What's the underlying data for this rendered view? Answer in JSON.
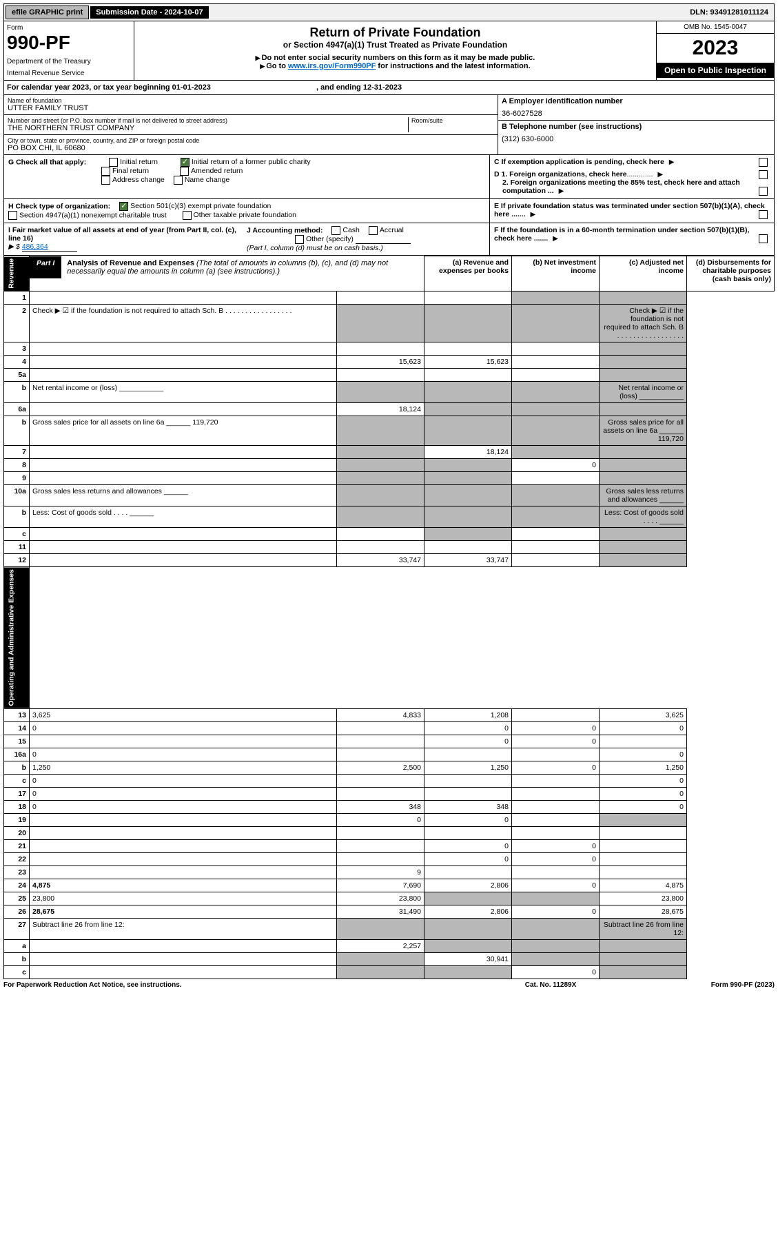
{
  "topbar": {
    "efile": "efile GRAPHIC print",
    "submission": "Submission Date - 2024-10-07",
    "dln": "DLN: 93491281011124"
  },
  "header": {
    "form_label": "Form",
    "form_num": "990-PF",
    "dept1": "Department of the Treasury",
    "dept2": "Internal Revenue Service",
    "title": "Return of Private Foundation",
    "subtitle": "or Section 4947(a)(1) Trust Treated as Private Foundation",
    "instr1": "Do not enter social security numbers on this form as it may be made public.",
    "instr2_pre": "Go to ",
    "instr2_link": "www.irs.gov/Form990PF",
    "instr2_post": " for instructions and the latest information.",
    "omb": "OMB No. 1545-0047",
    "year": "2023",
    "inspection": "Open to Public Inspection"
  },
  "cal_year": {
    "text_pre": "For calendar year 2023, or tax year beginning ",
    "begin": "01-01-2023",
    "text_mid": " , and ending ",
    "end": "12-31-2023"
  },
  "info": {
    "name_label": "Name of foundation",
    "name": "UTTER FAMILY TRUST",
    "addr_label": "Number and street (or P.O. box number if mail is not delivered to street address)",
    "addr": "THE NORTHERN TRUST COMPANY",
    "room_label": "Room/suite",
    "city_label": "City or town, state or province, country, and ZIP or foreign postal code",
    "city": "PO BOX CHI, IL  60680",
    "ein_label": "A Employer identification number",
    "ein": "36-6027528",
    "phone_label": "B Telephone number (see instructions)",
    "phone": "(312) 630-6000"
  },
  "checks": {
    "G_label": "G Check all that apply:",
    "initial": "Initial return",
    "final": "Final return",
    "address": "Address change",
    "initial_former": "Initial return of a former public charity",
    "amended": "Amended return",
    "name_change": "Name change",
    "H_label": "H Check type of organization:",
    "H_501c3": "Section 501(c)(3) exempt private foundation",
    "H_4947": "Section 4947(a)(1) nonexempt charitable trust",
    "H_other": "Other taxable private foundation",
    "I_label": "I Fair market value of all assets at end of year (from Part II, col. (c), line 16)",
    "I_value": "486,364",
    "J_label": "J Accounting method:",
    "J_cash": "Cash",
    "J_accrual": "Accrual",
    "J_other": "Other (specify)",
    "J_note": "(Part I, column (d) must be on cash basis.)",
    "C_label": "C If exemption application is pending, check here",
    "D1_label": "D 1. Foreign organizations, check here",
    "D2_label": "2. Foreign organizations meeting the 85% test, check here and attach computation ...",
    "E_label": "E If private foundation status was terminated under section 507(b)(1)(A), check here .......",
    "F_label": "F If the foundation is in a 60-month termination under section 507(b)(1)(B), check here .......",
    "dots": "............."
  },
  "part1": {
    "label": "Part I",
    "title_bold": "Analysis of Revenue and Expenses",
    "title_rest": " (The total of amounts in columns (b), (c), and (d) may not necessarily equal the amounts in column (a) (see instructions).)",
    "col_a": "(a)   Revenue and expenses per books",
    "col_b": "(b)   Net investment income",
    "col_c": "(c)   Adjusted net income",
    "col_d": "(d)   Disbursements for charitable purposes (cash basis only)",
    "side_revenue": "Revenue",
    "side_expenses": "Operating and Administrative Expenses"
  },
  "rows": [
    {
      "n": "1",
      "d": "",
      "a": "",
      "b": "",
      "c": "",
      "sh_c": true,
      "sh_d": true
    },
    {
      "n": "2",
      "d": "Check ▶ ☑ if the foundation is not required to attach Sch. B   .  .  .  .  .  .  .  .  .  .  .  .  .  .  .  .  .",
      "sh_a": true,
      "sh_b": true,
      "sh_c": true,
      "sh_d": true
    },
    {
      "n": "3",
      "d": "",
      "a": "",
      "b": "",
      "c": "",
      "sh_d": true
    },
    {
      "n": "4",
      "d": "",
      "a": "15,623",
      "b": "15,623",
      "c": "",
      "sh_d": true
    },
    {
      "n": "5a",
      "d": "",
      "a": "",
      "b": "",
      "c": "",
      "sh_d": true
    },
    {
      "n": "b",
      "d": "Net rental income or (loss)   ___________",
      "sh_a": true,
      "sh_b": true,
      "sh_c": true,
      "sh_d": true
    },
    {
      "n": "6a",
      "d": "",
      "a": "18,124",
      "b": "",
      "c": "",
      "sh_b": true,
      "sh_c": true,
      "sh_d": true
    },
    {
      "n": "b",
      "d": "Gross sales price for all assets on line 6a ______ 119,720",
      "sh_a": true,
      "sh_b": true,
      "sh_c": true,
      "sh_d": true
    },
    {
      "n": "7",
      "d": "",
      "a": "",
      "b": "18,124",
      "c": "",
      "sh_a": true,
      "sh_c": true,
      "sh_d": true
    },
    {
      "n": "8",
      "d": "",
      "a": "",
      "b": "",
      "c": "0",
      "sh_a": true,
      "sh_b": true,
      "sh_d": true
    },
    {
      "n": "9",
      "d": "",
      "a": "",
      "b": "",
      "c": "",
      "sh_a": true,
      "sh_b": true,
      "sh_d": true
    },
    {
      "n": "10a",
      "d": "Gross sales less returns and allowances   ______",
      "sh_a": true,
      "sh_b": true,
      "sh_c": true,
      "sh_d": true
    },
    {
      "n": "b",
      "d": "Less: Cost of goods sold   .   .   .   .   ______",
      "sh_a": true,
      "sh_b": true,
      "sh_c": true,
      "sh_d": true
    },
    {
      "n": "c",
      "d": "",
      "a": "",
      "b": "",
      "c": "",
      "sh_b": true,
      "sh_d": true
    },
    {
      "n": "11",
      "d": "",
      "a": "",
      "b": "",
      "c": "",
      "sh_d": true
    },
    {
      "n": "12",
      "d": "",
      "a": "33,747",
      "b": "33,747",
      "c": "",
      "bold": true,
      "sh_d": true
    },
    {
      "n": "13",
      "d": "3,625",
      "a": "4,833",
      "b": "1,208",
      "c": ""
    },
    {
      "n": "14",
      "d": "0",
      "a": "",
      "b": "0",
      "c": "0"
    },
    {
      "n": "15",
      "d": "",
      "a": "",
      "b": "0",
      "c": "0"
    },
    {
      "n": "16a",
      "d": "0",
      "a": "",
      "b": "",
      "c": ""
    },
    {
      "n": "b",
      "d": "1,250",
      "a": "2,500",
      "b": "1,250",
      "c": "0"
    },
    {
      "n": "c",
      "d": "0",
      "a": "",
      "b": "",
      "c": ""
    },
    {
      "n": "17",
      "d": "0",
      "a": "",
      "b": "",
      "c": ""
    },
    {
      "n": "18",
      "d": "0",
      "a": "348",
      "b": "348",
      "c": ""
    },
    {
      "n": "19",
      "d": "",
      "a": "0",
      "b": "0",
      "c": "",
      "sh_d": true
    },
    {
      "n": "20",
      "d": "",
      "a": "",
      "b": "",
      "c": ""
    },
    {
      "n": "21",
      "d": "",
      "a": "",
      "b": "0",
      "c": "0"
    },
    {
      "n": "22",
      "d": "",
      "a": "",
      "b": "0",
      "c": "0"
    },
    {
      "n": "23",
      "d": "",
      "a": "9",
      "b": "",
      "c": ""
    },
    {
      "n": "24",
      "d": "4,875",
      "a": "7,690",
      "b": "2,806",
      "c": "0",
      "bold": true
    },
    {
      "n": "25",
      "d": "23,800",
      "a": "23,800",
      "b": "",
      "c": "",
      "sh_b": true,
      "sh_c": true
    },
    {
      "n": "26",
      "d": "28,675",
      "a": "31,490",
      "b": "2,806",
      "c": "0",
      "bold": true
    },
    {
      "n": "27",
      "d": "Subtract line 26 from line 12:",
      "sh_a": true,
      "sh_b": true,
      "sh_c": true,
      "sh_d": true
    },
    {
      "n": "a",
      "d": "",
      "a": "2,257",
      "b": "",
      "c": "",
      "bold": true,
      "sh_b": true,
      "sh_c": true,
      "sh_d": true
    },
    {
      "n": "b",
      "d": "",
      "a": "",
      "b": "30,941",
      "c": "",
      "bold": true,
      "sh_a": true,
      "sh_c": true,
      "sh_d": true
    },
    {
      "n": "c",
      "d": "",
      "a": "",
      "b": "",
      "c": "0",
      "bold": true,
      "sh_a": true,
      "sh_b": true,
      "sh_d": true
    }
  ],
  "footer": {
    "left": "For Paperwork Reduction Act Notice, see instructions.",
    "mid": "Cat. No. 11289X",
    "right": "Form 990-PF (2023)"
  }
}
